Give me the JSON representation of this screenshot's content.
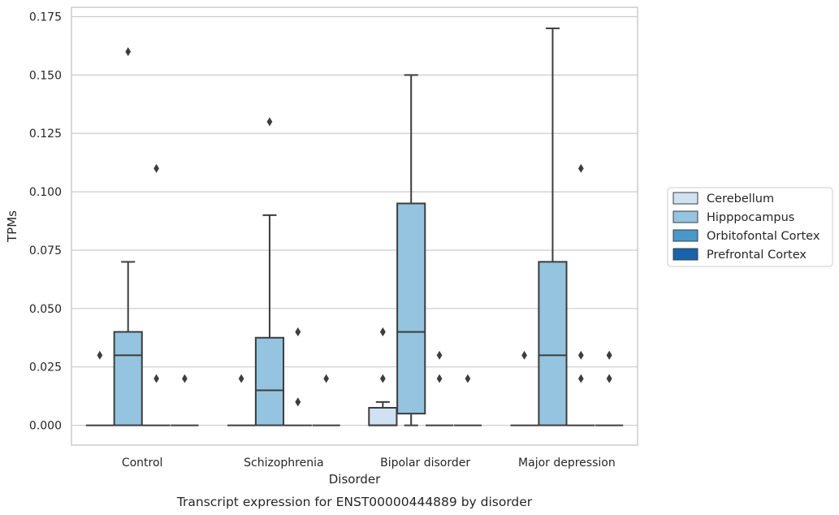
{
  "caption": "Transcript expression for ENST00000444889 by disorder",
  "chart_data": {
    "type": "box",
    "xlabel": "Disorder",
    "ylabel": "TPMs",
    "ylim": [
      -0.0085,
      0.179
    ],
    "yticks": [
      0.0,
      0.025,
      0.05,
      0.075,
      0.1,
      0.125,
      0.15,
      0.175
    ],
    "ytick_labels": [
      "0.000",
      "0.025",
      "0.050",
      "0.075",
      "0.100",
      "0.125",
      "0.150",
      "0.175"
    ],
    "grid": "horizontal",
    "legend_position": "right",
    "categories": [
      "Control",
      "Schizophrenia",
      "Bipolar disorder",
      "Major depression"
    ],
    "series": [
      {
        "name": "Cerebellum",
        "color": "#d0e1f2",
        "boxes": [
          {
            "q1": 0,
            "median": 0,
            "q3": 0,
            "whisker_low": 0,
            "whisker_high": 0,
            "outliers": [
              0.03
            ]
          },
          {
            "q1": 0,
            "median": 0,
            "q3": 0,
            "whisker_low": 0,
            "whisker_high": 0,
            "outliers": [
              0.02
            ]
          },
          {
            "q1": 0,
            "median": 0,
            "q3": 0.0075,
            "whisker_low": 0,
            "whisker_high": 0.01,
            "outliers": [
              0.02,
              0.04,
              0.04
            ]
          },
          {
            "q1": 0,
            "median": 0,
            "q3": 0,
            "whisker_low": 0,
            "whisker_high": 0,
            "outliers": [
              0.03
            ]
          }
        ]
      },
      {
        "name": "Hipppocampus",
        "color": "#94c4df",
        "boxes": [
          {
            "q1": 0,
            "median": 0.03,
            "q3": 0.04,
            "whisker_low": 0,
            "whisker_high": 0.07,
            "outliers": [
              0.16
            ]
          },
          {
            "q1": 0,
            "median": 0.015,
            "q3": 0.0375,
            "whisker_low": 0,
            "whisker_high": 0.09,
            "outliers": [
              0.13
            ]
          },
          {
            "q1": 0.005,
            "median": 0.04,
            "q3": 0.095,
            "whisker_low": 0,
            "whisker_high": 0.15,
            "outliers": []
          },
          {
            "q1": 0,
            "median": 0.03,
            "q3": 0.07,
            "whisker_low": 0,
            "whisker_high": 0.17,
            "outliers": []
          }
        ]
      },
      {
        "name": "Orbitofontal Cortex",
        "color": "#4a98c9",
        "boxes": [
          {
            "q1": 0,
            "median": 0,
            "q3": 0,
            "whisker_low": 0,
            "whisker_high": 0,
            "outliers": [
              0.02,
              0.11
            ]
          },
          {
            "q1": 0,
            "median": 0,
            "q3": 0,
            "whisker_low": 0,
            "whisker_high": 0,
            "outliers": [
              0.01,
              0.01,
              0.04,
              0.04
            ]
          },
          {
            "q1": 0,
            "median": 0,
            "q3": 0,
            "whisker_low": 0,
            "whisker_high": 0,
            "outliers": [
              0.02,
              0.03
            ]
          },
          {
            "q1": 0,
            "median": 0,
            "q3": 0,
            "whisker_low": 0,
            "whisker_high": 0,
            "outliers": [
              0.02,
              0.03,
              0.11
            ]
          }
        ]
      },
      {
        "name": "Prefrontal Cortex",
        "color": "#1764ab",
        "boxes": [
          {
            "q1": 0,
            "median": 0,
            "q3": 0,
            "whisker_low": 0,
            "whisker_high": 0,
            "outliers": [
              0.02
            ]
          },
          {
            "q1": 0,
            "median": 0,
            "q3": 0,
            "whisker_low": 0,
            "whisker_high": 0,
            "outliers": [
              0.02
            ]
          },
          {
            "q1": 0,
            "median": 0,
            "q3": 0,
            "whisker_low": 0,
            "whisker_high": 0,
            "outliers": [
              0.02
            ]
          },
          {
            "q1": 0,
            "median": 0,
            "q3": 0,
            "whisker_low": 0,
            "whisker_high": 0,
            "outliers": [
              0.02,
              0.02,
              0.03,
              0.03
            ]
          }
        ]
      }
    ]
  }
}
